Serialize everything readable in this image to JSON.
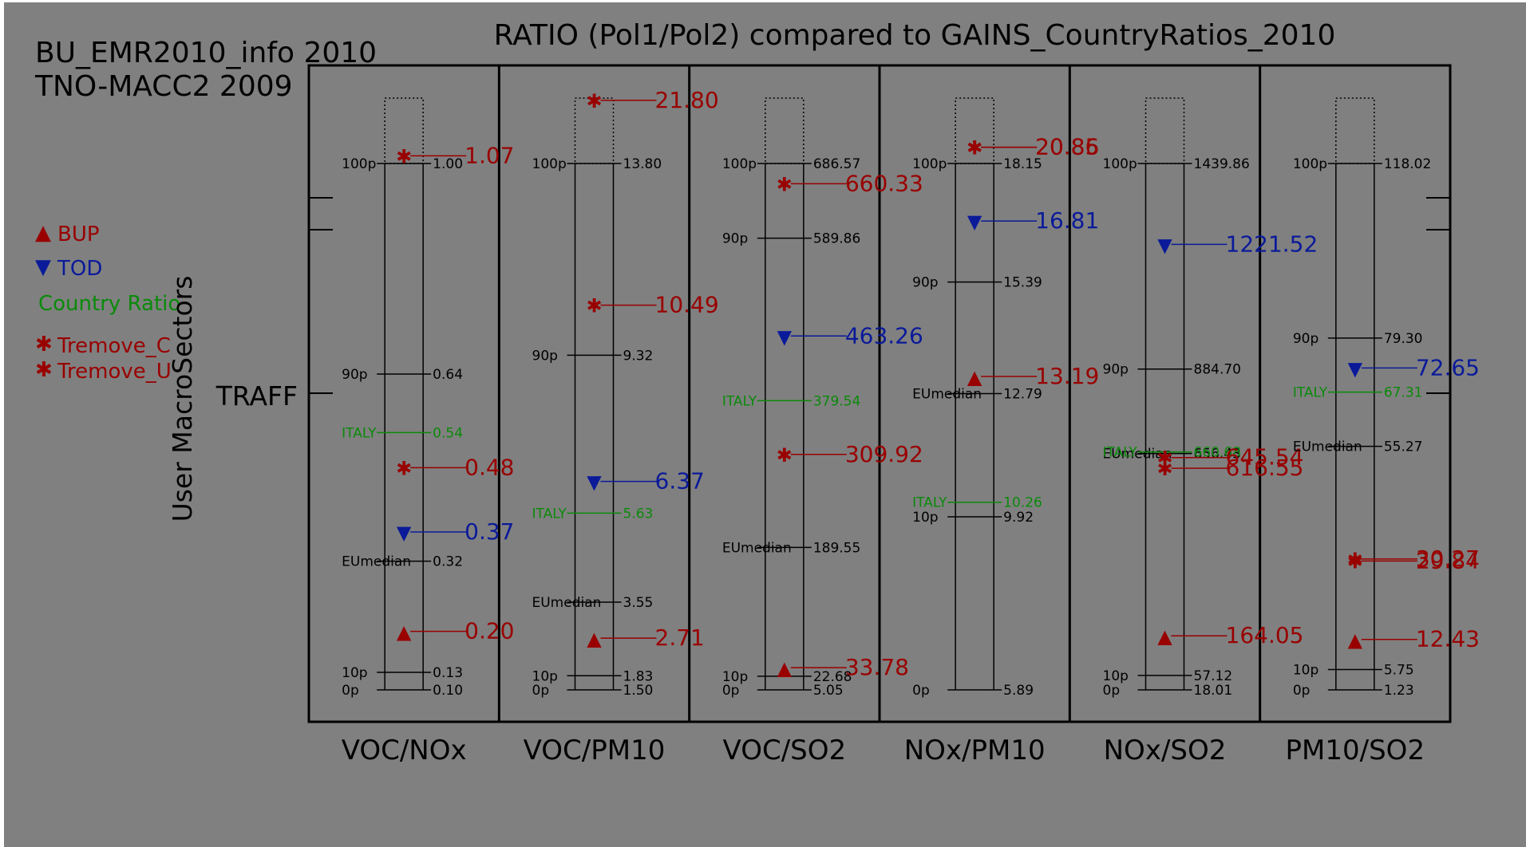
{
  "header": {
    "title": "RATIO (Pol1/Pol2) compared to GAINS_CountryRatios_2010",
    "source_line1": "BU_EMR2010_info 2010",
    "source_line2": "TNO-MACC2 2009"
  },
  "legend": {
    "items": [
      {
        "symbol": "▲",
        "label": "BUP",
        "color": "#990000"
      },
      {
        "symbol": "▼",
        "label": "TOD",
        "color": "#0a1a99"
      },
      {
        "symbol": "",
        "label": "Country Ratio",
        "color": "#0a8a0a"
      },
      {
        "symbol": "✱",
        "label": "Tremove_C",
        "color": "#990000"
      },
      {
        "symbol": "✱",
        "label": "Tremove_U",
        "color": "#990000"
      }
    ]
  },
  "y_axis": {
    "label": "User MacroSectors",
    "sector": "TRAFF"
  },
  "colors": {
    "background": "#808080",
    "frame": "#000000",
    "bup": "#990000",
    "tod": "#0a1a99",
    "country": "#0a8a0a",
    "tremove": "#990000",
    "text": "#000000"
  },
  "chart_data": {
    "type": "scatter",
    "title": "RATIO (Pol1/Pol2) compared to GAINS_CountryRatios_2010",
    "ylabel": "User MacroSectors",
    "sector": "TRAFF",
    "categories": [
      "VOC/NOx",
      "VOC/PM10",
      "VOC/SO2",
      "NOx/PM10",
      "NOx/SO2",
      "PM10/SO2"
    ],
    "panels": [
      {
        "name": "VOC/NOx",
        "percentiles": [
          {
            "label": "100p",
            "value": "1.00"
          },
          {
            "label": "90p",
            "value": "0.64"
          },
          {
            "label": "EUmedian",
            "value": "0.32"
          },
          {
            "label": "10p",
            "value": "0.13"
          },
          {
            "label": "0p",
            "value": "0.10"
          }
        ],
        "country": {
          "label": "ITALY",
          "value": "0.54"
        },
        "markers": [
          {
            "type": "tremove",
            "value": "1.07"
          },
          {
            "type": "tremove",
            "value": "0.48"
          },
          {
            "type": "tod",
            "value": "0.37"
          },
          {
            "type": "bup",
            "value": "0.20"
          }
        ]
      },
      {
        "name": "VOC/PM10",
        "percentiles": [
          {
            "label": "100p",
            "value": "13.80"
          },
          {
            "label": "90p",
            "value": "9.32"
          },
          {
            "label": "EUmedian",
            "value": "3.55"
          },
          {
            "label": "10p",
            "value": "1.83"
          },
          {
            "label": "0p",
            "value": "1.50"
          }
        ],
        "country": {
          "label": "ITALY",
          "value": "5.63"
        },
        "markers": [
          {
            "type": "tremove",
            "value": "21.80"
          },
          {
            "type": "tremove",
            "value": "10.49"
          },
          {
            "type": "tod",
            "value": "6.37"
          },
          {
            "type": "bup",
            "value": "2.71"
          }
        ]
      },
      {
        "name": "VOC/SO2",
        "percentiles": [
          {
            "label": "100p",
            "value": "686.57"
          },
          {
            "label": "90p",
            "value": "589.86"
          },
          {
            "label": "EUmedian",
            "value": "189.55"
          },
          {
            "label": "10p",
            "value": "22.68"
          },
          {
            "label": "0p",
            "value": "5.05"
          }
        ],
        "country": {
          "label": "ITALY",
          "value": "379.54"
        },
        "markers": [
          {
            "type": "tremove",
            "value": "660.33"
          },
          {
            "type": "tod",
            "value": "463.26"
          },
          {
            "type": "tremove",
            "value": "309.92"
          },
          {
            "type": "bup",
            "value": "33.78"
          }
        ]
      },
      {
        "name": "NOx/PM10",
        "percentiles": [
          {
            "label": "100p",
            "value": "18.15"
          },
          {
            "label": "90p",
            "value": "15.39"
          },
          {
            "label": "EUmedian",
            "value": "12.79"
          },
          {
            "label": "10p",
            "value": "9.92"
          },
          {
            "label": "0p",
            "value": "5.89"
          }
        ],
        "country": {
          "label": "ITALY",
          "value": "10.26"
        },
        "markers": [
          {
            "type": "tremove",
            "value": "20.86"
          },
          {
            "type": "tremove",
            "value": "20.85"
          },
          {
            "type": "tod",
            "value": "16.81"
          },
          {
            "type": "bup",
            "value": "13.19"
          }
        ]
      },
      {
        "name": "NOx/SO2",
        "percentiles": [
          {
            "label": "100p",
            "value": "1439.86"
          },
          {
            "label": "90p",
            "value": "884.70"
          },
          {
            "label": "EUmedian",
            "value": "656.43"
          },
          {
            "label": "10p",
            "value": "57.12"
          },
          {
            "label": "0p",
            "value": "18.01"
          }
        ],
        "country": {
          "label": "ITALY",
          "value": "660.68"
        },
        "markers": [
          {
            "type": "tod",
            "value": "1221.52"
          },
          {
            "type": "tremove",
            "value": "645.54"
          },
          {
            "type": "tremove",
            "value": "616.55"
          },
          {
            "type": "bup",
            "value": "164.05"
          }
        ]
      },
      {
        "name": "PM10/SO2",
        "percentiles": [
          {
            "label": "100p",
            "value": "118.02"
          },
          {
            "label": "90p",
            "value": "79.30"
          },
          {
            "label": "EUmedian",
            "value": "55.27"
          },
          {
            "label": "10p",
            "value": "5.75"
          },
          {
            "label": "0p",
            "value": "1.23"
          }
        ],
        "country": {
          "label": "ITALY",
          "value": "67.31"
        },
        "markers": [
          {
            "type": "tod",
            "value": "72.65"
          },
          {
            "type": "tremove",
            "value": "30.27"
          },
          {
            "type": "tremove",
            "value": "29.84"
          },
          {
            "type": "bup",
            "value": "12.43"
          }
        ]
      }
    ]
  }
}
